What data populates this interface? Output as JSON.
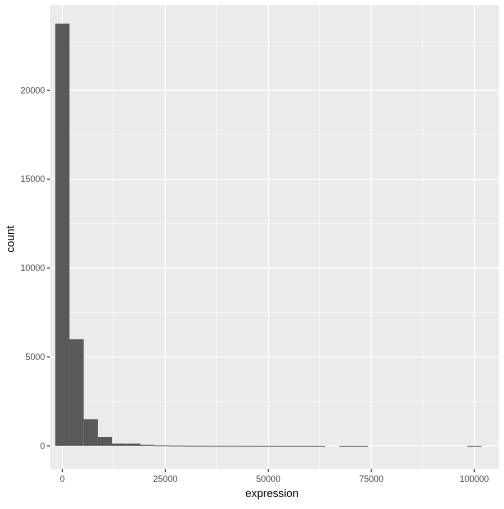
{
  "chart_data": {
    "type": "bar",
    "subtype": "histogram",
    "xlabel": "expression",
    "ylabel": "count",
    "xlim": [
      -3000,
      106000
    ],
    "ylim": [
      -1300,
      24800
    ],
    "x_ticks": [
      0,
      25000,
      50000,
      75000,
      100000
    ],
    "x_tick_labels": [
      "0",
      "25000",
      "50000",
      "75000",
      "100000"
    ],
    "y_ticks": [
      0,
      5000,
      10000,
      15000,
      20000
    ],
    "y_tick_labels": [
      "0",
      "5000",
      "10000",
      "15000",
      "20000"
    ],
    "bin_width": 3450,
    "bins": [
      {
        "x0": -1725,
        "x1": 1725,
        "count": 23750
      },
      {
        "x0": 1725,
        "x1": 5175,
        "count": 6000
      },
      {
        "x0": 5175,
        "x1": 8625,
        "count": 1500
      },
      {
        "x0": 8625,
        "x1": 12075,
        "count": 500
      },
      {
        "x0": 12075,
        "x1": 15525,
        "count": 130
      },
      {
        "x0": 15525,
        "x1": 18975,
        "count": 130
      },
      {
        "x0": 18975,
        "x1": 22425,
        "count": 60
      },
      {
        "x0": 22425,
        "x1": 25875,
        "count": 25
      },
      {
        "x0": 25875,
        "x1": 29325,
        "count": 15
      },
      {
        "x0": 29325,
        "x1": 32775,
        "count": 10
      },
      {
        "x0": 32775,
        "x1": 36225,
        "count": 8
      },
      {
        "x0": 36225,
        "x1": 39675,
        "count": 6
      },
      {
        "x0": 39675,
        "x1": 43125,
        "count": 5
      },
      {
        "x0": 43125,
        "x1": 46575,
        "count": 4
      },
      {
        "x0": 46575,
        "x1": 50025,
        "count": 3
      },
      {
        "x0": 50025,
        "x1": 53475,
        "count": 3
      },
      {
        "x0": 53475,
        "x1": 56925,
        "count": 2
      },
      {
        "x0": 56925,
        "x1": 60375,
        "count": 2
      },
      {
        "x0": 60375,
        "x1": 63825,
        "count": 1
      },
      {
        "x0": 63825,
        "x1": 67275,
        "count": 0
      },
      {
        "x0": 67275,
        "x1": 70725,
        "count": 1
      },
      {
        "x0": 70725,
        "x1": 74175,
        "count": 1
      },
      {
        "x0": 74175,
        "x1": 77625,
        "count": 0
      },
      {
        "x0": 77625,
        "x1": 81075,
        "count": 0
      },
      {
        "x0": 81075,
        "x1": 84525,
        "count": 0
      },
      {
        "x0": 84525,
        "x1": 87975,
        "count": 0
      },
      {
        "x0": 87975,
        "x1": 91425,
        "count": 0
      },
      {
        "x0": 91425,
        "x1": 94875,
        "count": 0
      },
      {
        "x0": 94875,
        "x1": 98325,
        "count": 0
      },
      {
        "x0": 98325,
        "x1": 101775,
        "count": 1
      }
    ],
    "grid": true,
    "colors": {
      "bar": "#595959",
      "panel": "#ebebeb",
      "grid_major": "#ffffff",
      "tick_text": "#4d4d4d",
      "axis_title": "#000000"
    }
  }
}
